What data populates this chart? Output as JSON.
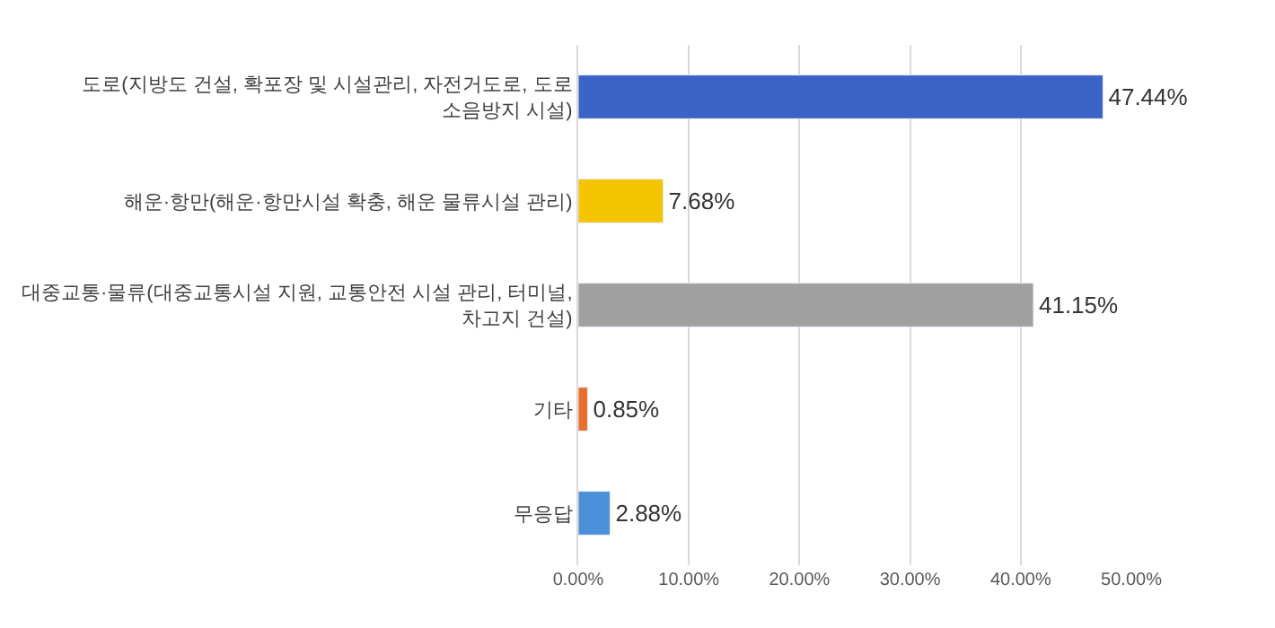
{
  "chart_data": {
    "type": "bar",
    "orientation": "horizontal",
    "categories": [
      "도로(지방도 건설, 확포장 및 시설관리, 자전거도로, 도로\n소음방지 시설)",
      "해운·항만(해운·항만시설 확충, 해운 물류시설 관리)",
      "대중교통·물류(대중교통시설 지원, 교통안전 시설 관리, 터미널,\n차고지 건설)",
      "기타",
      "무응답"
    ],
    "values": [
      47.44,
      7.68,
      41.15,
      0.85,
      2.88
    ],
    "value_labels": [
      "47.44%",
      "7.68%",
      "41.15%",
      "0.85%",
      "2.88%"
    ],
    "colors": [
      "#3a64c8",
      "#f5c400",
      "#a0a0a0",
      "#e8702a",
      "#4a90d9"
    ],
    "xlim": [
      0,
      50
    ],
    "xticks": [
      {
        "value": 0,
        "label": "0.00%"
      },
      {
        "value": 10,
        "label": "10.00%"
      },
      {
        "value": 20,
        "label": "20.00%"
      },
      {
        "value": 30,
        "label": "30.00%"
      },
      {
        "value": 40,
        "label": "40.00%"
      },
      {
        "value": 50,
        "label": "50.00%"
      }
    ],
    "grid": "x",
    "legend": false
  }
}
